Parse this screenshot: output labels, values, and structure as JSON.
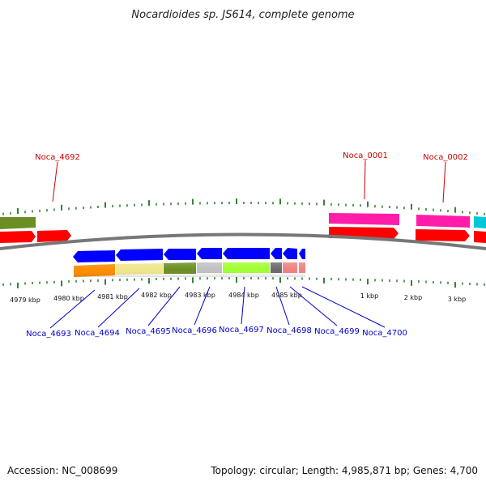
{
  "title": "Nocardioides sp. JS614, complete genome",
  "footer": {
    "accession": "Accession: NC_008699",
    "summary": "Topology: circular; Length: 4,985,871 bp; Genes: 4,700"
  },
  "top_labels": [
    "Noca_4692",
    "Noca_0001",
    "Noca_0002"
  ],
  "bottom_labels": [
    "Noca_4693",
    "Noca_4694",
    "Noca_4695",
    "Noca_4696",
    "Noca_4697",
    "Noca_4698",
    "Noca_4699",
    "Noca_4700"
  ],
  "ruler_labels": [
    "4979 kbp",
    "4980 kbp",
    "4981 kbp",
    "4982 kbp",
    "4983 kbp",
    "4984 kbp",
    "4985 kbp",
    "1 kbp",
    "2 kbp",
    "3 kbp"
  ],
  "colors": {
    "forward_gene": "#ff0000",
    "reverse_gene": "#0000ff",
    "backbone": "#777777",
    "ticks": "#006600",
    "cog_pink": "#ff1ca8",
    "cog_olive": "#6b8e23",
    "cog_cyan": "#00c8d8",
    "cog_orange": "#ff8c00",
    "cog_khaki": "#f0e68c",
    "cog_silver": "#c0c0c0",
    "cog_lime": "#a0ff30",
    "cog_dim": "#696969",
    "cog_salmon": "#f08080"
  }
}
